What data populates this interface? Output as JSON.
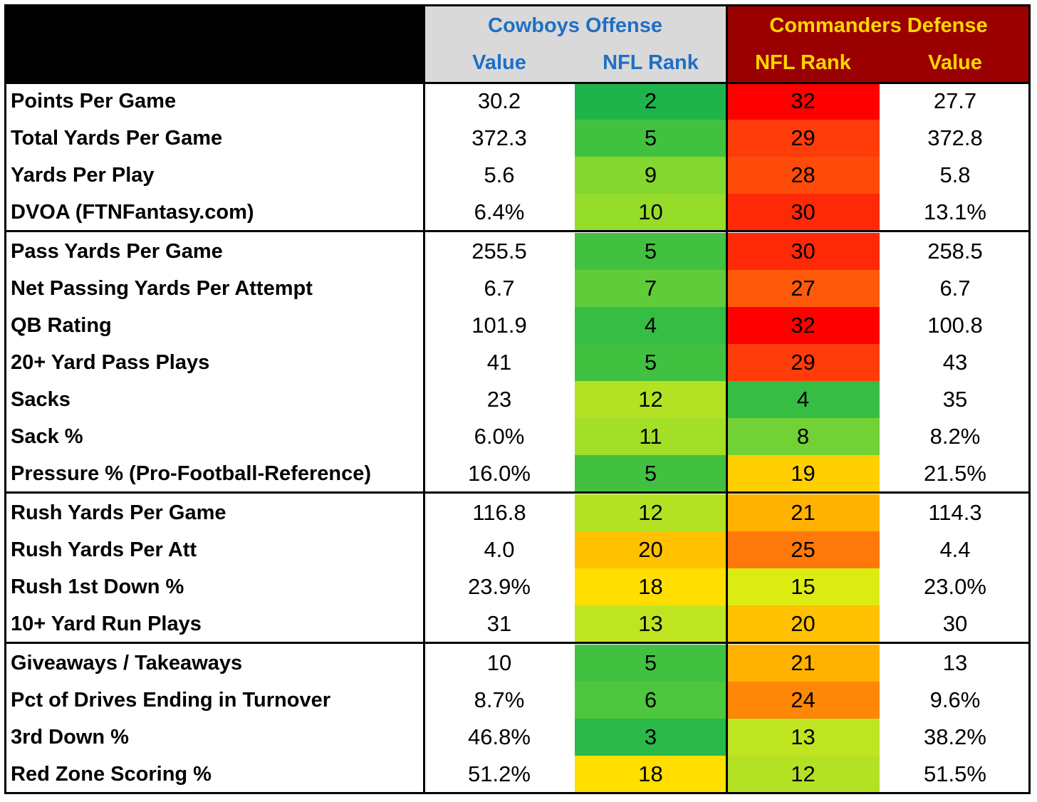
{
  "header": {
    "cowboys_title": "Cowboys Offense",
    "commanders_title": "Commanders Defense",
    "cowboys_value": "Value",
    "cowboys_rank": "NFL Rank",
    "commanders_rank": "NFL Rank",
    "commanders_value": "Value"
  },
  "colors": {
    "cowboys_header_bg": "#d9d9d9",
    "cowboys_header_text": "#1f6fc5",
    "commanders_header_bg": "#9b0000",
    "commanders_header_text": "#ffd700",
    "corner_bg": "#000000"
  },
  "groups": [
    {
      "rows": [
        {
          "label": "Points Per Game",
          "off_value": "30.2",
          "off_rank": "2",
          "def_rank": "32",
          "def_value": "27.7"
        },
        {
          "label": "Total Yards Per Game",
          "off_value": "372.3",
          "off_rank": "5",
          "def_rank": "29",
          "def_value": "372.8"
        },
        {
          "label": "Yards Per Play",
          "off_value": "5.6",
          "off_rank": "9",
          "def_rank": "28",
          "def_value": "5.8"
        },
        {
          "label": "DVOA (FTNFantasy.com)",
          "off_value": "6.4%",
          "off_rank": "10",
          "def_rank": "30",
          "def_value": "13.1%"
        }
      ]
    },
    {
      "rows": [
        {
          "label": "Pass Yards Per Game",
          "off_value": "255.5",
          "off_rank": "5",
          "def_rank": "30",
          "def_value": "258.5"
        },
        {
          "label": "Net Passing Yards Per Attempt",
          "off_value": "6.7",
          "off_rank": "7",
          "def_rank": "27",
          "def_value": "6.7"
        },
        {
          "label": "QB Rating",
          "off_value": "101.9",
          "off_rank": "4",
          "def_rank": "32",
          "def_value": "100.8"
        },
        {
          "label": "20+ Yard Pass Plays",
          "off_value": "41",
          "off_rank": "5",
          "def_rank": "29",
          "def_value": "43"
        },
        {
          "label": "Sacks",
          "off_value": "23",
          "off_rank": "12",
          "def_rank": "4",
          "def_value": "35"
        },
        {
          "label": "Sack %",
          "off_value": "6.0%",
          "off_rank": "11",
          "def_rank": "8",
          "def_value": "8.2%"
        },
        {
          "label": "Pressure % (Pro-Football-Reference)",
          "off_value": "16.0%",
          "off_rank": "5",
          "def_rank": "19",
          "def_value": "21.5%"
        }
      ]
    },
    {
      "rows": [
        {
          "label": "Rush Yards Per Game",
          "off_value": "116.8",
          "off_rank": "12",
          "def_rank": "21",
          "def_value": "114.3"
        },
        {
          "label": "Rush Yards Per Att",
          "off_value": "4.0",
          "off_rank": "20",
          "def_rank": "25",
          "def_value": "4.4"
        },
        {
          "label": "Rush 1st Down %",
          "off_value": "23.9%",
          "off_rank": "18",
          "def_rank": "15",
          "def_value": "23.0%"
        },
        {
          "label": "10+ Yard Run Plays",
          "off_value": "31",
          "off_rank": "13",
          "def_rank": "20",
          "def_value": "30"
        }
      ]
    },
    {
      "rows": [
        {
          "label": "Giveaways / Takeaways",
          "off_value": "10",
          "off_rank": "5",
          "def_rank": "21",
          "def_value": "13"
        },
        {
          "label": "Pct of Drives Ending in Turnover",
          "off_value": "8.7%",
          "off_rank": "6",
          "def_rank": "24",
          "def_value": "9.6%"
        },
        {
          "label": "3rd Down %",
          "off_value": "46.8%",
          "off_rank": "3",
          "def_rank": "13",
          "def_value": "38.2%"
        },
        {
          "label": "Red Zone Scoring %",
          "off_value": "51.2%",
          "off_rank": "18",
          "def_rank": "12",
          "def_value": "51.5%"
        }
      ]
    }
  ]
}
